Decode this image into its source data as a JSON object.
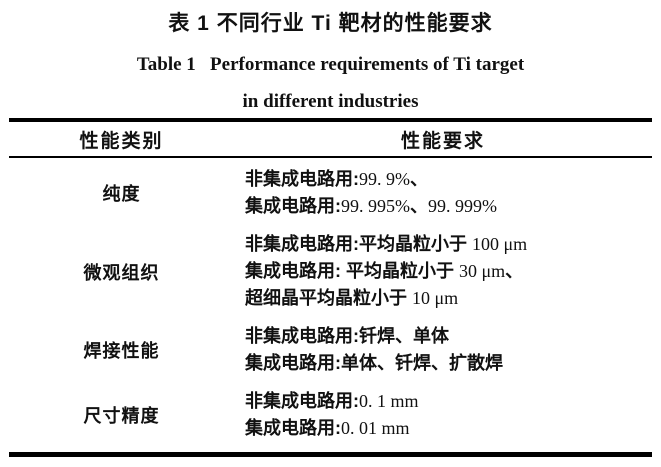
{
  "titles": {
    "zh": "表 1  不同行业 Ti 靶材的性能要求",
    "en_line1": "Table 1   Performance requirements of Ti target",
    "en_line2": "in different industries"
  },
  "table": {
    "headers": {
      "category": "性能类别",
      "requirement": "性能要求"
    },
    "rows": [
      {
        "category": "纯度",
        "lines": [
          [
            {
              "t": "非集成电路用:",
              "k": "cn"
            },
            {
              "t": "99. 9%",
              "k": "lat"
            },
            {
              "t": "、",
              "k": "cn"
            }
          ],
          [
            {
              "t": "集成电路用:",
              "k": "cn"
            },
            {
              "t": "99. 995%",
              "k": "lat"
            },
            {
              "t": "、",
              "k": "cn"
            },
            {
              "t": "99. 999%",
              "k": "lat"
            }
          ]
        ]
      },
      {
        "category": "微观组织",
        "lines": [
          [
            {
              "t": "非集成电路用:平均晶粒小于 ",
              "k": "cn"
            },
            {
              "t": "100 μm",
              "k": "lat"
            }
          ],
          [
            {
              "t": "集成电路用: 平均晶粒小于 ",
              "k": "cn"
            },
            {
              "t": "30 μm",
              "k": "lat"
            },
            {
              "t": "、",
              "k": "cn"
            }
          ],
          [
            {
              "t": "超细晶平均晶粒小于 ",
              "k": "cn"
            },
            {
              "t": "10 μm",
              "k": "lat"
            }
          ]
        ]
      },
      {
        "category": "焊接性能",
        "lines": [
          [
            {
              "t": "非集成电路用:钎焊、单体",
              "k": "cn"
            }
          ],
          [
            {
              "t": "集成电路用:单体、钎焊、扩散焊",
              "k": "cn"
            }
          ]
        ]
      },
      {
        "category": "尺寸精度",
        "lines": [
          [
            {
              "t": "非集成电路用:",
              "k": "cn"
            },
            {
              "t": "0. 1 mm",
              "k": "lat"
            }
          ],
          [
            {
              "t": "集成电路用:",
              "k": "cn"
            },
            {
              "t": "0. 01 mm",
              "k": "lat"
            }
          ]
        ]
      }
    ]
  },
  "colors": {
    "text": "#111111",
    "rule": "#000000",
    "background": "#ffffff"
  }
}
